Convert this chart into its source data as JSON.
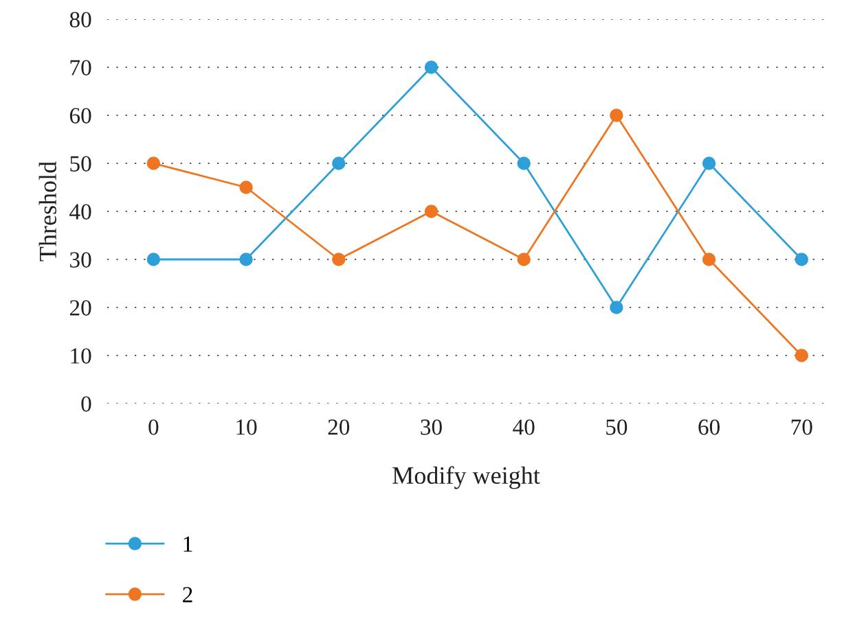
{
  "chart_data": {
    "type": "line",
    "xlabel": "Modify weight",
    "ylabel": "Threshold",
    "x": [
      0,
      10,
      20,
      30,
      40,
      50,
      60,
      70
    ],
    "series": [
      {
        "name": "1",
        "color": "#2e9fd8",
        "values": [
          30,
          30,
          50,
          70,
          50,
          20,
          50,
          30
        ]
      },
      {
        "name": "2",
        "color": "#ee7623",
        "values": [
          50,
          45,
          30,
          40,
          30,
          60,
          30,
          10
        ]
      }
    ],
    "xlim": [
      -5,
      72.5
    ],
    "xticks": [
      0,
      10,
      20,
      30,
      40,
      50,
      60,
      70
    ],
    "ylim": [
      0,
      80
    ],
    "yticks": [
      0,
      10,
      20,
      30,
      40,
      50,
      60,
      70,
      80
    ],
    "grid": "y",
    "legend": "bottom left",
    "marker": "circle",
    "line_style": "solid"
  }
}
